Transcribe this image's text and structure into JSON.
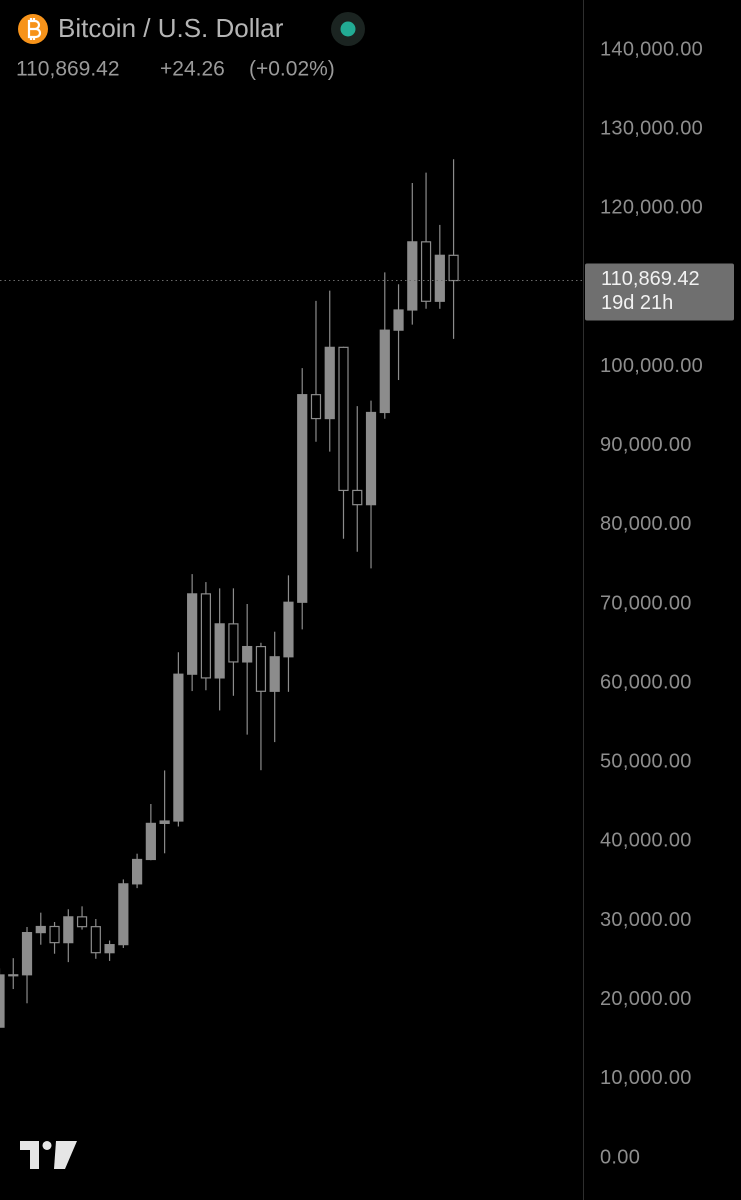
{
  "chart_data": {
    "type": "candlestick",
    "title": "Bitcoin / U.S. Dollar",
    "price_label": "110,869.42",
    "change_label": "+24.26",
    "change_pct_label": "(+0.02%)",
    "countdown": "19d 21h",
    "color": "#8c8c8c",
    "open": [
      16530,
      23130,
      23150,
      28480,
      29250,
      27210,
      30470,
      29230,
      25940,
      26960,
      34640,
      37720,
      42280,
      42580,
      61130,
      71280,
      60660,
      67490,
      62680,
      64620,
      58970,
      63330,
      70220,
      96450,
      93430,
      102430,
      84350,
      82550,
      94200,
      104600,
      107150,
      115760,
      108250,
      114060
    ],
    "high": [
      23960,
      25250,
      29190,
      31000,
      29820,
      31430,
      31800,
      30200,
      27480,
      35200,
      38450,
      44730,
      48970,
      63910,
      73780,
      72770,
      71980,
      71980,
      70000,
      65100,
      66500,
      73620,
      99800,
      108300,
      109590,
      102500,
      95000,
      95700,
      111900,
      110400,
      123200,
      124500,
      117900,
      126200
    ],
    "low": [
      16500,
      21350,
      19550,
      26950,
      25810,
      24750,
      28860,
      25170,
      24900,
      26540,
      34100,
      37620,
      38500,
      41880,
      59000,
      59100,
      56550,
      58400,
      53500,
      49000,
      52550,
      58900,
      66800,
      90500,
      89250,
      78250,
      76600,
      74500,
      93400,
      98300,
      105300,
      107300,
      107300,
      103500
    ],
    "close": [
      23130,
      23150,
      28480,
      29250,
      27210,
      30470,
      29230,
      25940,
      26960,
      34640,
      37720,
      42280,
      42580,
      61130,
      71280,
      60660,
      67490,
      62680,
      64620,
      58970,
      63330,
      70220,
      96450,
      93430,
      102430,
      84350,
      82550,
      94200,
      104600,
      107150,
      115760,
      108250,
      114060,
      110869.42
    ],
    "ylim": [
      -5307,
      146318
    ],
    "yticks": [
      {
        "value": 0,
        "label": "0.00"
      },
      {
        "value": 10000,
        "label": "10,000.00"
      },
      {
        "value": 20000,
        "label": "20,000.00"
      },
      {
        "value": 30000,
        "label": "30,000.00"
      },
      {
        "value": 40000,
        "label": "40,000.00"
      },
      {
        "value": 50000,
        "label": "50,000.00"
      },
      {
        "value": 60000,
        "label": "60,000.00"
      },
      {
        "value": 70000,
        "label": "70,000.00"
      },
      {
        "value": 80000,
        "label": "80,000.00"
      },
      {
        "value": 90000,
        "label": "90,000.00"
      },
      {
        "value": 100000,
        "label": "100,000.00"
      },
      {
        "value": 120000,
        "label": "120,000.00"
      },
      {
        "value": 130000,
        "label": "130,000.00"
      },
      {
        "value": 140000,
        "label": "140,000.00"
      }
    ]
  }
}
